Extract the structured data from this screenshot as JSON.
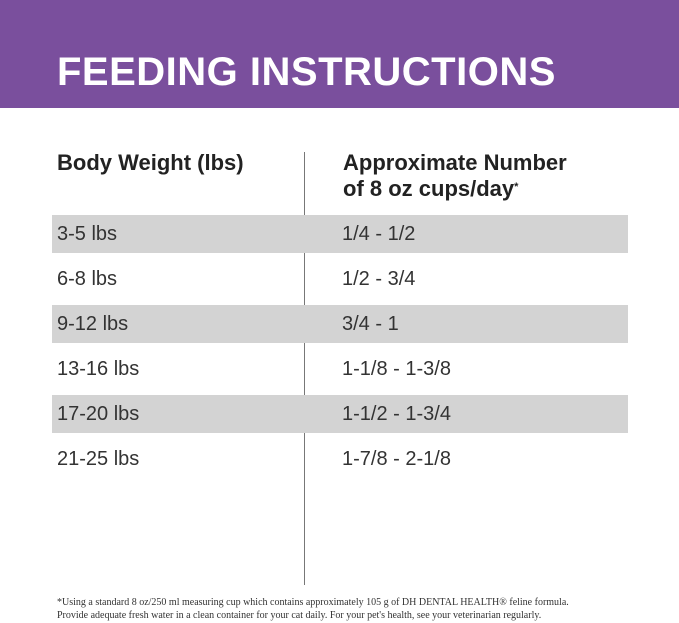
{
  "header": {
    "title": "FEEDING INSTRUCTIONS"
  },
  "table": {
    "headers": [
      "Body Weight (lbs)",
      [
        "Approximate Number",
        "of 8 oz cups/day"
      ]
    ],
    "header_note_mark": "*",
    "rows": [
      [
        "3-5 lbs",
        "1/4 - 1/2"
      ],
      [
        "6-8 lbs",
        "1/2 - 3/4"
      ],
      [
        "9-12 lbs",
        "3/4 - 1"
      ],
      [
        "13-16 lbs",
        "1-1/8 - 1-3/8"
      ],
      [
        "17-20 lbs",
        "1-1/2 - 1-3/4"
      ],
      [
        "21-25 lbs",
        "1-7/8 - 2-1/8"
      ]
    ]
  },
  "footnote": [
    "*Using a standard 8 oz/250 ml measuring cup which contains approximately 105 g of DH DENTAL HEALTH® feline formula.",
    "Provide adequate fresh water in a clean container for your cat daily. For your pet's health, see your veterinarian regularly."
  ]
}
